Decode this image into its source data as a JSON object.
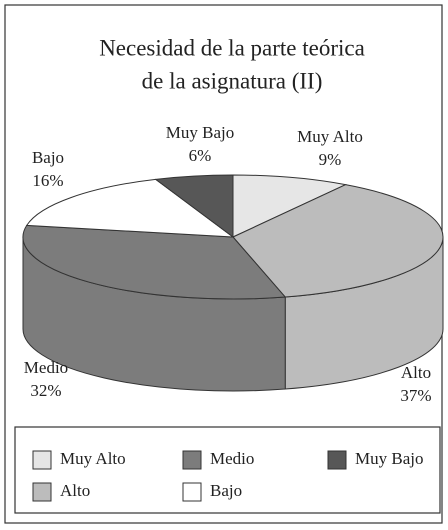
{
  "chart_data": {
    "type": "pie3d",
    "title_lines": [
      "Necesidad de la parte teórica",
      "de la asignatura (II)"
    ],
    "categories": [
      "Muy Alto",
      "Alto",
      "Medio",
      "Bajo",
      "Muy Bajo"
    ],
    "values": [
      9,
      37,
      32,
      16,
      6
    ],
    "value_labels": [
      "9%",
      "37%",
      "32%",
      "16%",
      "6%"
    ],
    "colors": [
      "#e6e6e6",
      "#bcbcbc",
      "#7c7c7c",
      "#ffffff",
      "#575757"
    ],
    "legend": "bottom"
  }
}
